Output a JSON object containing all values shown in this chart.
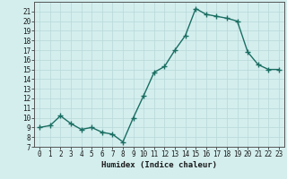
{
  "title": "",
  "xlabel": "Humidex (Indice chaleur)",
  "ylabel": "",
  "x_values": [
    0,
    1,
    2,
    3,
    4,
    5,
    6,
    7,
    8,
    9,
    10,
    11,
    12,
    13,
    14,
    15,
    16,
    17,
    18,
    19,
    20,
    21,
    22,
    23
  ],
  "y_values": [
    9.0,
    9.2,
    10.2,
    9.4,
    8.8,
    9.0,
    8.5,
    8.3,
    7.5,
    10.0,
    12.3,
    14.7,
    15.3,
    17.0,
    18.5,
    21.3,
    20.7,
    20.5,
    20.3,
    20.0,
    16.8,
    15.5,
    15.0,
    15.0
  ],
  "line_color": "#1a6e62",
  "marker": "+",
  "marker_size": 4,
  "bg_color": "#d4eeee",
  "grid_color": "#b8d8d8",
  "ylim": [
    7,
    22
  ],
  "xlim": [
    -0.5,
    23.5
  ],
  "yticks": [
    7,
    8,
    9,
    10,
    11,
    12,
    13,
    14,
    15,
    16,
    17,
    18,
    19,
    20,
    21
  ],
  "xticks": [
    0,
    1,
    2,
    3,
    4,
    5,
    6,
    7,
    8,
    9,
    10,
    11,
    12,
    13,
    14,
    15,
    16,
    17,
    18,
    19,
    20,
    21,
    22,
    23
  ],
  "tick_fontsize": 5.5,
  "xlabel_fontsize": 6.5,
  "linewidth": 1.0
}
